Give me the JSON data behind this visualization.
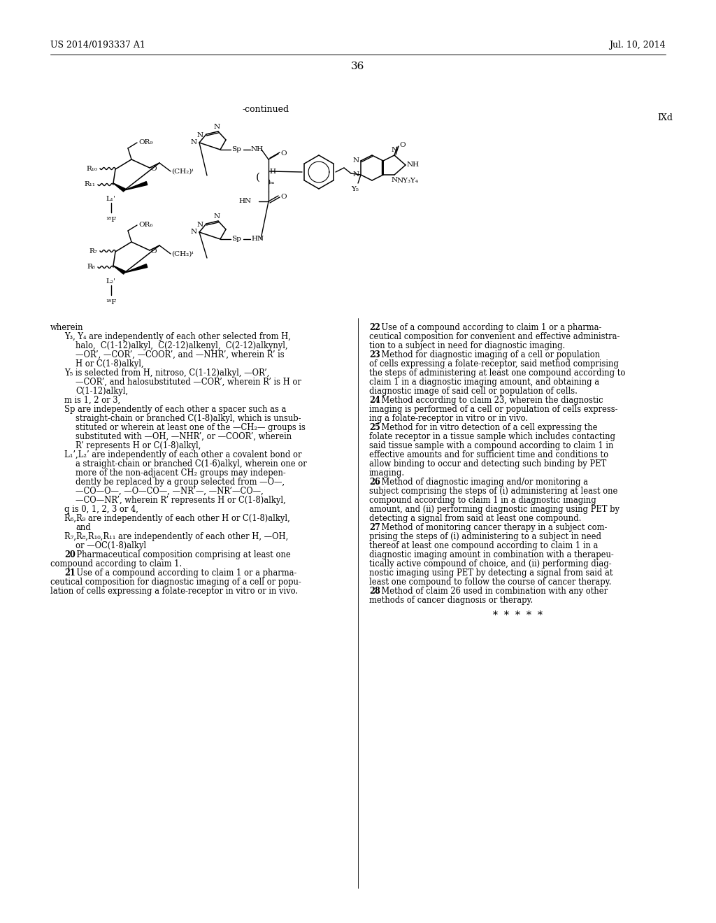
{
  "header_left": "US 2014/0193337 A1",
  "header_right": "Jul. 10, 2014",
  "page_number": "36",
  "continued_label": "-continued",
  "compound_label": "IXd",
  "background_color": "#ffffff",
  "text_color": "#000000"
}
